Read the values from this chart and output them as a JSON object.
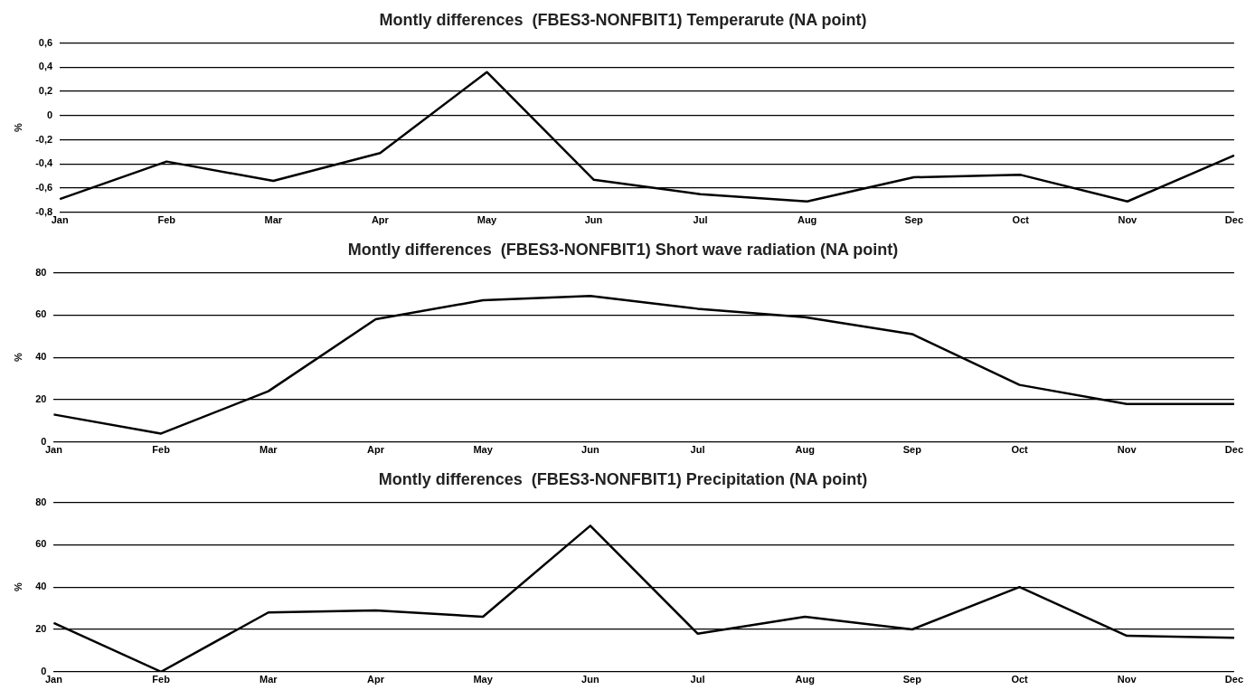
{
  "chart_data": [
    {
      "type": "line",
      "title": "Montly differences  (FBES3-NONFBIT1) Temperarute (NA point)",
      "ylabel": "%",
      "categories": [
        "Jan",
        "Feb",
        "Mar",
        "Apr",
        "May",
        "Jun",
        "Jul",
        "Aug",
        "Sep",
        "Oct",
        "Nov",
        "Dec"
      ],
      "series": [
        {
          "color": "#000000",
          "values": [
            -0.69,
            -0.38,
            -0.54,
            -0.31,
            0.36,
            -0.53,
            -0.65,
            -0.71,
            -0.51,
            -0.49,
            -0.71,
            -0.33
          ]
        }
      ],
      "ylim": [
        -0.8,
        0.6
      ],
      "yticks": [
        {
          "value": -0.8,
          "label": "-0,8"
        },
        {
          "value": -0.6,
          "label": "-0,6"
        },
        {
          "value": -0.4,
          "label": "-0,4"
        },
        {
          "value": -0.2,
          "label": "-0,2"
        },
        0,
        {
          "value": 0.2,
          "label": "0,2"
        },
        {
          "value": 0.4,
          "label": "0,4"
        },
        {
          "value": 0.6,
          "label": "0,6"
        }
      ],
      "grid": "y",
      "marker": "none",
      "line_style": "solid"
    },
    {
      "type": "line",
      "title": "Montly differences  (FBES3-NONFBIT1) Short wave radiation (NA point)",
      "ylabel": "%",
      "categories": [
        "Jan",
        "Feb",
        "Mar",
        "Apr",
        "May",
        "Jun",
        "Jul",
        "Aug",
        "Sep",
        "Oct",
        "Nov",
        "Dec"
      ],
      "series": [
        {
          "color": "#000000",
          "values": [
            13,
            4,
            24,
            58,
            67,
            69,
            63,
            59,
            51,
            27,
            18,
            18
          ]
        }
      ],
      "ylim": [
        0,
        80
      ],
      "yticks": [
        0,
        20,
        40,
        60,
        80
      ],
      "grid": "y",
      "marker": "none",
      "line_style": "solid"
    },
    {
      "type": "line",
      "title": "Montly differences  (FBES3-NONFBIT1) Precipitation (NA point)",
      "ylabel": "%",
      "categories": [
        "Jan",
        "Feb",
        "Mar",
        "Apr",
        "May",
        "Jun",
        "Jul",
        "Aug",
        "Sep",
        "Oct",
        "Nov",
        "Dec"
      ],
      "series": [
        {
          "color": "#000000",
          "values": [
            23,
            0,
            28,
            29,
            26,
            69,
            18,
            26,
            20,
            40,
            17,
            16
          ]
        }
      ],
      "ylim": [
        0,
        80
      ],
      "yticks": [
        0,
        20,
        40,
        60,
        80
      ],
      "grid": "y",
      "marker": "none",
      "line_style": "solid"
    }
  ]
}
